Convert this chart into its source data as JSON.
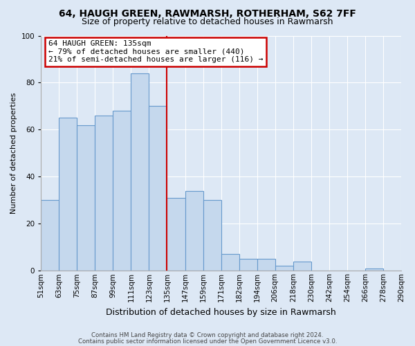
{
  "title": "64, HAUGH GREEN, RAWMARSH, ROTHERHAM, S62 7FF",
  "subtitle": "Size of property relative to detached houses in Rawmarsh",
  "xlabel": "Distribution of detached houses by size in Rawmarsh",
  "ylabel": "Number of detached properties",
  "bin_labels": [
    "51sqm",
    "63sqm",
    "75sqm",
    "87sqm",
    "99sqm",
    "111sqm",
    "123sqm",
    "135sqm",
    "147sqm",
    "159sqm",
    "171sqm",
    "182sqm",
    "194sqm",
    "206sqm",
    "218sqm",
    "230sqm",
    "242sqm",
    "254sqm",
    "266sqm",
    "278sqm",
    "290sqm"
  ],
  "bar_values": [
    30,
    65,
    62,
    66,
    68,
    84,
    70,
    31,
    34,
    30,
    7,
    5,
    5,
    2,
    4,
    0,
    0,
    0,
    1,
    0
  ],
  "vline_position": 7,
  "annotation_title": "64 HAUGH GREEN: 135sqm",
  "annotation_line1": "← 79% of detached houses are smaller (440)",
  "annotation_line2": "21% of semi-detached houses are larger (116) →",
  "ylim": [
    0,
    100
  ],
  "yticks": [
    0,
    20,
    40,
    60,
    80,
    100
  ],
  "footer1": "Contains HM Land Registry data © Crown copyright and database right 2024.",
  "footer2": "Contains public sector information licensed under the Open Government Licence v3.0.",
  "bg_color": "#dde8f5",
  "bar_facecolor": "#c5d8ed",
  "bar_edgecolor": "#6699cc",
  "vline_color": "#cc0000",
  "annotation_box_edge": "#cc0000",
  "grid_color": "#ffffff",
  "title_fontsize": 10,
  "subtitle_fontsize": 9,
  "ylabel_fontsize": 8,
  "xlabel_fontsize": 9,
  "tick_fontsize": 7.5,
  "annotation_fontsize": 8
}
